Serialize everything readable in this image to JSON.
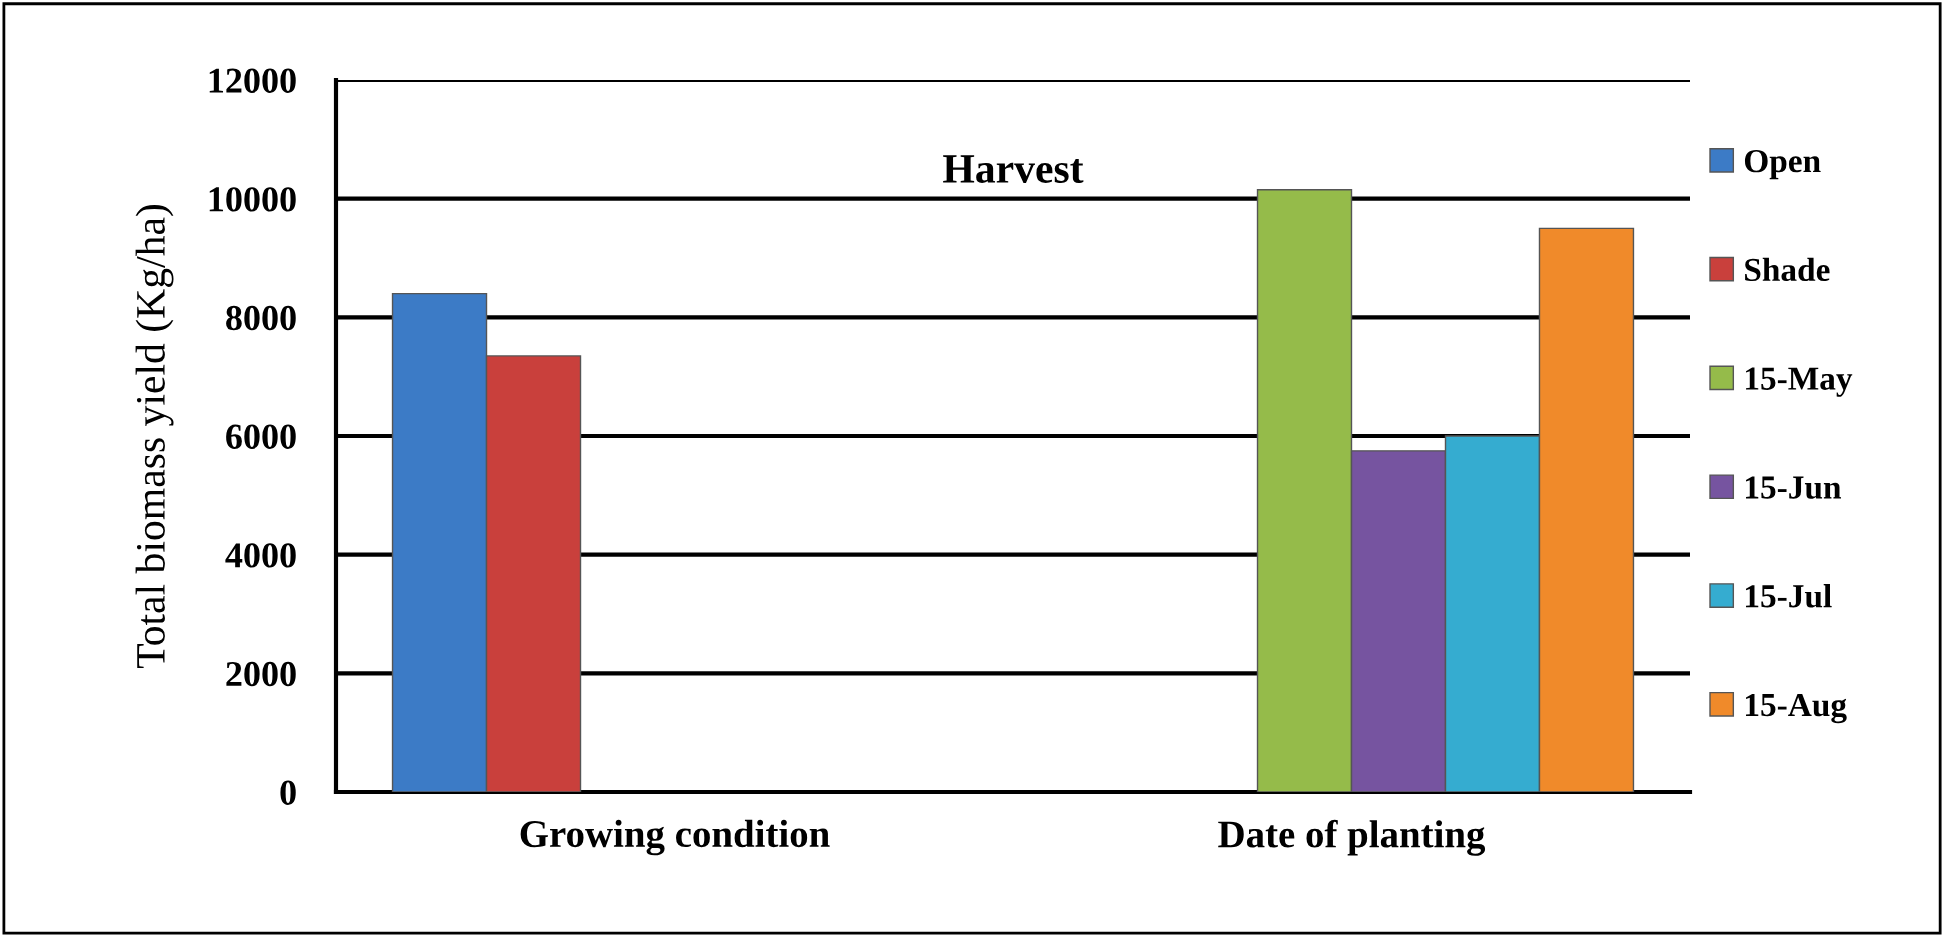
{
  "chart_data": {
    "type": "bar",
    "title": "Harvest",
    "ylabel": "Total biomass yield (Kg/ha)",
    "categories": [
      "Growing condition",
      "Date of planting"
    ],
    "series": [
      {
        "name": "Open",
        "color": "#3c7bc6",
        "values": [
          8400,
          null
        ]
      },
      {
        "name": "Shade",
        "color": "#c9403c",
        "values": [
          7350,
          null
        ]
      },
      {
        "name": "15-May",
        "color": "#95bb4a",
        "values": [
          null,
          10150
        ]
      },
      {
        "name": "15-Jun",
        "color": "#7654a0",
        "values": [
          null,
          5750
        ]
      },
      {
        "name": "15-Jul",
        "color": "#35acd0",
        "values": [
          null,
          6000
        ]
      },
      {
        "name": "15-Aug",
        "color": "#f08a2a",
        "values": [
          null,
          9500
        ]
      }
    ],
    "ylim": [
      0,
      12000
    ],
    "yticks": [
      0,
      2000,
      4000,
      6000,
      8000,
      10000,
      12000
    ],
    "grid": "y",
    "legend": "right"
  }
}
